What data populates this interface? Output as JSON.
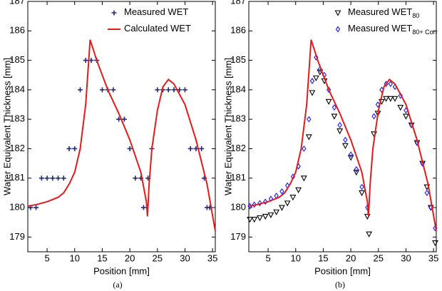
{
  "chart_data": [
    {
      "type": "line",
      "caption": "(a)",
      "xlabel": "Position [mm]",
      "ylabel": "Water Equivalent Thickness [mm]",
      "xlim": [
        1.5,
        35.5
      ],
      "ylim": [
        178.5,
        187
      ],
      "xticks": [
        5,
        10,
        15,
        20,
        25,
        30,
        35
      ],
      "yticks": [
        179,
        180,
        181,
        182,
        183,
        184,
        185,
        186,
        187
      ],
      "series": [
        {
          "name": "Measured  WET",
          "color": "#1f2a7a",
          "marker": "plus",
          "x": [
            2,
            3,
            4,
            5,
            6,
            7,
            8,
            9,
            10,
            11,
            12,
            13,
            14,
            15,
            16,
            17,
            18,
            19,
            20,
            21,
            22,
            22.5,
            23.3,
            24,
            25,
            26,
            27,
            28,
            29,
            30,
            31,
            32,
            33,
            33.5,
            34,
            34.5
          ],
          "values": [
            180,
            180,
            181,
            181,
            181,
            181,
            181,
            182,
            182,
            184,
            185,
            185,
            185,
            184,
            184,
            184,
            183,
            183,
            182,
            181,
            181,
            180,
            181,
            182,
            184,
            184,
            184,
            184,
            184,
            184,
            182,
            182,
            182,
            181,
            180,
            180
          ]
        },
        {
          "name": "Calculated WET",
          "color": "#e41a1c",
          "marker": "line",
          "x": [
            1.5,
            3,
            5,
            7,
            8,
            9,
            10,
            11,
            12,
            12.8,
            14,
            16,
            18,
            20,
            22,
            23,
            23.2,
            23.5,
            24,
            25,
            26,
            27,
            28,
            30,
            32,
            34,
            35.5
          ],
          "values": [
            180.05,
            180.1,
            180.2,
            180.35,
            180.5,
            180.8,
            181.2,
            182,
            183.5,
            185.7,
            185,
            184,
            183.2,
            182.3,
            181.2,
            180.2,
            179.7,
            180.8,
            182,
            183.3,
            184.1,
            184.35,
            184.2,
            183.5,
            182.3,
            180.8,
            179.2
          ]
        }
      ]
    },
    {
      "type": "line",
      "caption": "(b)",
      "xlabel": "Position [mm]",
      "ylabel": "Water Equivalent Thickness [mm]",
      "xlim": [
        1.5,
        35.5
      ],
      "ylim": [
        178.5,
        187
      ],
      "xticks": [
        5,
        10,
        15,
        20,
        25,
        30,
        35
      ],
      "yticks": [
        179,
        180,
        181,
        182,
        183,
        184,
        185,
        186,
        187
      ],
      "series": [
        {
          "name": "Measured WET",
          "subscript": "80",
          "color": "#000000",
          "marker": "tri-down",
          "x": [
            1.7,
            2.5,
            3.5,
            4.5,
            5.5,
            6.5,
            7.5,
            8.5,
            9.5,
            10.5,
            11.5,
            12.4,
            13,
            13.7,
            14.4,
            15.2,
            16,
            17,
            18,
            19,
            20,
            21,
            22,
            23,
            23.3,
            24.2,
            24.9,
            25.6,
            26.4,
            27.2,
            28,
            29,
            30,
            31,
            32,
            33,
            33.8,
            34.5,
            35.3
          ],
          "values": [
            179.6,
            179.6,
            179.65,
            179.7,
            179.75,
            179.85,
            180,
            180.15,
            180.35,
            180.6,
            181,
            182.4,
            183.9,
            184.4,
            184.6,
            184.3,
            183.6,
            183.1,
            182.6,
            182.1,
            181.7,
            181.2,
            180.5,
            179.7,
            179.1,
            182.5,
            183.2,
            183.6,
            183.7,
            183.7,
            183.7,
            183.4,
            183.1,
            182.8,
            182.2,
            181.5,
            180.7,
            180,
            178.8
          ]
        },
        {
          "name": "Measured WET",
          "subscript": "80+ Corr",
          "color": "#1a1aff",
          "marker": "diamond",
          "x": [
            1.7,
            2.5,
            3.5,
            4.5,
            5.5,
            6.5,
            7.5,
            8.5,
            9.5,
            10.5,
            11.5,
            12.4,
            13,
            13.7,
            14.4,
            15.2,
            16,
            17,
            18,
            19,
            20,
            21,
            22,
            23,
            24.2,
            24.9,
            25.6,
            26.4,
            27.2,
            28,
            29,
            30,
            31,
            32,
            33,
            33.8,
            34.5,
            35.3
          ],
          "values": [
            180.05,
            180.1,
            180.15,
            180.2,
            180.3,
            180.4,
            180.55,
            180.75,
            181.05,
            181.4,
            182,
            183,
            184.3,
            185.1,
            184.7,
            184.5,
            184,
            183.4,
            182.8,
            182.3,
            181.8,
            181.3,
            180.7,
            180,
            183.1,
            183.5,
            184,
            184.2,
            184.2,
            184.1,
            183.8,
            183.3,
            182.8,
            182.2,
            181.5,
            180.5,
            180,
            179.3
          ]
        },
        {
          "color": "#e41a1c",
          "marker": "line",
          "x": [
            1.5,
            3,
            5,
            7,
            8,
            9,
            10,
            11,
            12,
            12.8,
            14,
            16,
            18,
            20,
            22,
            23,
            23.2,
            23.5,
            24,
            25,
            26,
            27,
            28,
            30,
            32,
            34,
            35.5
          ],
          "values": [
            180.05,
            180.1,
            180.2,
            180.35,
            180.5,
            180.8,
            181.2,
            182,
            183.5,
            185.7,
            185,
            184,
            183.2,
            182.3,
            181.2,
            180.2,
            179.7,
            180.8,
            182,
            183.3,
            184.1,
            184.35,
            184.2,
            183.5,
            182.3,
            180.8,
            179.2
          ]
        }
      ]
    }
  ]
}
